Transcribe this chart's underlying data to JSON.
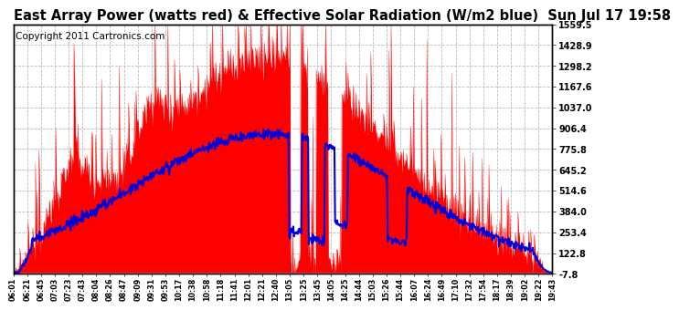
{
  "title": "East Array Power (watts red) & Effective Solar Radiation (W/m2 blue)  Sun Jul 17 19:58",
  "copyright": "Copyright 2011 Cartronics.com",
  "y_min": -7.8,
  "y_max": 1559.5,
  "y_ticks": [
    1559.5,
    1428.9,
    1298.2,
    1167.6,
    1037.0,
    906.4,
    775.8,
    645.2,
    514.6,
    384.0,
    253.4,
    122.8,
    -7.8
  ],
  "x_labels": [
    "06:01",
    "06:21",
    "06:45",
    "07:03",
    "07:23",
    "07:43",
    "08:04",
    "08:26",
    "08:47",
    "09:09",
    "09:31",
    "09:53",
    "10:17",
    "10:38",
    "10:58",
    "11:18",
    "11:41",
    "12:01",
    "12:21",
    "12:40",
    "13:05",
    "13:25",
    "13:45",
    "14:05",
    "14:25",
    "14:44",
    "15:03",
    "15:26",
    "15:44",
    "16:07",
    "16:24",
    "16:49",
    "17:10",
    "17:32",
    "17:54",
    "18:17",
    "18:39",
    "19:02",
    "19:22",
    "19:43"
  ],
  "bg_color": "#ffffff",
  "grid_color": "#bbbbbb",
  "red_color": "#ff0000",
  "blue_color": "#0000dd",
  "title_fontsize": 10.5,
  "copyright_fontsize": 7.5
}
